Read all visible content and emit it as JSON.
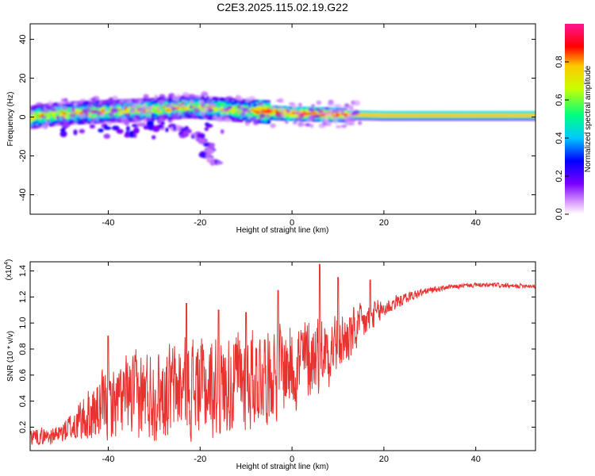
{
  "title": "C2E3.2025.115.02.19.G22",
  "chart_data": [
    {
      "type": "heatmap",
      "title": "C2E3.2025.115.02.19.G22",
      "xlabel": "Height of straight line (km)",
      "ylabel": "Frequency (Hz)",
      "xlim": [
        -57,
        53
      ],
      "ylim": [
        -50,
        48
      ],
      "xticks": [
        "-40",
        "-20",
        "0",
        "20",
        "40"
      ],
      "yticks": [
        "40",
        "20",
        "0",
        "-20",
        "-40"
      ],
      "colorbar": {
        "label": "Normalized spectral amplitude",
        "range": [
          0,
          1
        ],
        "ticks": [
          "0.0",
          "0.2",
          "0.4",
          "0.6",
          "0.8"
        ],
        "colors": [
          "#ffffff",
          "#dca0ff",
          "#7a00ff",
          "#0000ff",
          "#00c8ff",
          "#00ff80",
          "#c8ff00",
          "#ffc800",
          "#ff0000",
          "#ff1493"
        ]
      },
      "ridge": {
        "description_points": [
          {
            "x": -57,
            "f": 0.0
          },
          {
            "x": -50,
            "f": 2.0
          },
          {
            "x": -40,
            "f": 3.0
          },
          {
            "x": -30,
            "f": 4.0
          },
          {
            "x": -22,
            "f": 5.5
          },
          {
            "x": -15,
            "f": 4.0
          },
          {
            "x": -8,
            "f": 3.0
          },
          {
            "x": 0,
            "f": 2.0
          },
          {
            "x": 10,
            "f": 1.5
          },
          {
            "x": 20,
            "f": 1.0
          },
          {
            "x": 53,
            "f": 1.0
          }
        ]
      },
      "branch": [
        {
          "x": -35,
          "f": -3
        },
        {
          "x": -25,
          "f": -6
        },
        {
          "x": -20,
          "f": -10
        },
        {
          "x": -18,
          "f": -15
        },
        {
          "x": -19,
          "f": -20
        },
        {
          "x": -16,
          "f": -24
        }
      ]
    },
    {
      "type": "line",
      "xlabel": "Height of straight line (km)",
      "ylabel": "SNR (10 * v/v)",
      "y_multiplier": "(x10",
      "y_multiplier_exp": "4",
      "y_multiplier_close": ")",
      "xlim": [
        -57,
        53
      ],
      "ylim": [
        0.02,
        1.47
      ],
      "xticks": [
        "-40",
        "-20",
        "0",
        "20",
        "40"
      ],
      "yticks": [
        "1.4",
        "1.2",
        "1.0",
        "0.8",
        "0.6",
        "0.4",
        "0.2"
      ],
      "color": "#e8322f",
      "series": [
        {
          "x": [
            -57,
            -54,
            -51,
            -48,
            -45,
            -42,
            -39,
            -36,
            -33,
            -30,
            -27,
            -24,
            -21,
            -18,
            -15,
            -12,
            -9,
            -6,
            -3,
            0,
            3,
            6,
            9,
            12,
            15,
            18,
            21,
            24,
            27,
            30,
            33,
            36,
            39,
            42,
            45,
            48,
            51,
            53
          ],
          "base": [
            0.14,
            0.13,
            0.14,
            0.2,
            0.27,
            0.33,
            0.38,
            0.42,
            0.45,
            0.46,
            0.48,
            0.5,
            0.52,
            0.5,
            0.52,
            0.56,
            0.58,
            0.62,
            0.64,
            0.68,
            0.72,
            0.78,
            0.83,
            0.88,
            0.98,
            1.06,
            1.13,
            1.18,
            1.22,
            1.25,
            1.27,
            1.28,
            1.29,
            1.29,
            1.29,
            1.28,
            1.29,
            1.28
          ],
          "amplitude": [
            0.08,
            0.07,
            0.08,
            0.14,
            0.22,
            0.28,
            0.32,
            0.35,
            0.38,
            0.38,
            0.4,
            0.42,
            0.44,
            0.42,
            0.42,
            0.44,
            0.44,
            0.42,
            0.42,
            0.4,
            0.38,
            0.34,
            0.3,
            0.24,
            0.18,
            0.12,
            0.08,
            0.05,
            0.04,
            0.03,
            0.02,
            0.02,
            0.02,
            0.02,
            0.02,
            0.02,
            0.02,
            0.02
          ]
        }
      ],
      "peaks": [
        {
          "x": -40,
          "y": 0.9
        },
        {
          "x": -23,
          "y": 1.15
        },
        {
          "x": -16,
          "y": 1.1
        },
        {
          "x": -10,
          "y": 1.08
        },
        {
          "x": -3,
          "y": 1.25
        },
        {
          "x": 6,
          "y": 1.45
        },
        {
          "x": 10,
          "y": 1.35
        },
        {
          "x": 17,
          "y": 1.33
        }
      ]
    }
  ]
}
